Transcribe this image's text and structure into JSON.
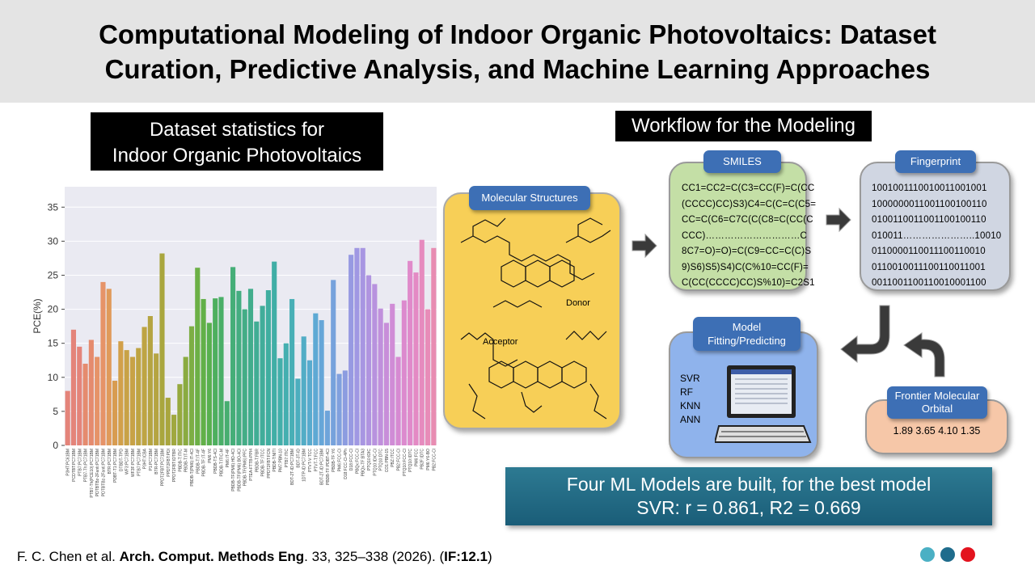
{
  "header": {
    "title_lines": [
      "Computational Modeling of Indoor Organic Photovoltaics: Dataset",
      "Curation, Predictive Analysis, and Machine Learning Approaches"
    ]
  },
  "chart_label": [
    "Dataset statistics for",
    "Indoor Organic Photovoltaics"
  ],
  "chart_data": {
    "type": "bar",
    "ylabel": "PCE(%)",
    "ylim": [
      0,
      38
    ],
    "yticks": [
      0,
      5,
      10,
      15,
      20,
      25,
      30,
      35
    ],
    "grid": true,
    "background": "#eaeaf2",
    "categories": [
      "P3HT:PC61BM",
      "PCDTBT:PC71BM",
      "PTB7:PC71BM",
      "PTB7-Th:PC71BM",
      "PTB7-Th(PCE10):PC71BM",
      "PDTBTBz-2Fanti:PC71BM",
      "PDTBTBz-2Fanti:PC71BM",
      "BTR:PC71BM",
      "PDBT-T1:PC71BM",
      "DTBDT-TPD",
      "WF3:PC71BM",
      "WF3F:PC71BM",
      "PTB7:PC71BM",
      "P3HT:ICBA",
      "P1:PC71BM",
      "BTR-PC71BM",
      "PPDT2FBT:PC71BM",
      "PPDT2FBT:PDI",
      "PPDT2FBT:IDTBR",
      "PBDB-T:ITIC",
      "PBDB-T:IT-M",
      "PBDB-T(PM6):IT-4Cl",
      "PBDB-T:IT-4F",
      "PBDB-TF:IT-4F",
      "PM6:Y6",
      "PBDB-TS-4Cl",
      "PBDB-T:ITIC-M",
      "PM6:IT-4F",
      "PBDB-TF(PM6):HD-4Cl",
      "PBDB-TF(PM6):BO-4Cl",
      "PBDB-TF(PM6):PFC",
      "PTEA-FTTB-PPI4",
      "PBDB-T:FBR",
      "PBDB-TF:ITCC",
      "PPDT2FBT:FCN",
      "PBDB-T:NITI",
      "PM7:PBN-10",
      "PTB7:ITIC",
      "BDT-2T-ID:PC71BM",
      "BDT-3T-ID",
      "1DTP-ID:PC71BM",
      "PTVT-V:TCC",
      "PTVT-T:FCC",
      "BDT-2T-ID:PC71BM",
      "PBDB-TF:PDBT-4Cl",
      "PBDB-TF:Y6",
      "PM6:FCC-Cl",
      "D18:FCC-Cl-4Ph",
      "D18:FCC-Cl",
      "PBQx:FCC-Cl",
      "PBQx-TF:BTA3",
      "PTQ10:IDIC",
      "PTQ10:IDIC-Cl",
      "PTQ10:DTC",
      "CO1:PBN-15",
      "PBZ:ITCC",
      "PB2:FCC-Cl",
      "PTQ10:FCC-Cl",
      "PTQ10:IDTC",
      "PM6:FCC",
      "PB2F:IDTC",
      "PM6:Y6-BO",
      "PB2:FCC-Cl"
    ],
    "values": [
      8,
      17,
      14.5,
      12,
      15.5,
      13,
      24,
      23,
      9.5,
      15.3,
      14,
      13,
      14.3,
      17.4,
      19,
      13.5,
      28.2,
      7,
      4.5,
      9,
      13,
      17.5,
      26.1,
      21.5,
      18,
      21.6,
      21.8,
      6.5,
      26.2,
      22.7,
      20,
      23,
      18.2,
      20.5,
      22.8,
      27,
      12.8,
      15,
      21.5,
      9.8,
      16,
      12.5,
      19.4,
      18.4,
      5.1,
      24.3,
      10.5,
      11,
      28,
      29,
      29,
      25,
      23.7,
      20.1,
      18,
      20.8,
      13,
      21.3,
      27.1,
      25.4,
      30.2,
      20,
      29
    ],
    "colors": [
      "#e4847a",
      "#e4847a",
      "#e4847a",
      "#e58b6e",
      "#e58b6e",
      "#e69368",
      "#e69368",
      "#e09a5a",
      "#d89c50",
      "#d2a04a",
      "#c8a246",
      "#c8a246",
      "#bea443",
      "#bea443",
      "#b5a441",
      "#b5a441",
      "#a9a63e",
      "#a9a63e",
      "#a0a83e",
      "#96a93e",
      "#8aab40",
      "#7dae44",
      "#6cb046",
      "#62b048",
      "#58b04e",
      "#4daf5e",
      "#4aaf68",
      "#47ae70",
      "#45ae78",
      "#44ad80",
      "#43ad86",
      "#42ad8c",
      "#41ad94",
      "#41ad9a",
      "#40aea0",
      "#40aea6",
      "#42afaa",
      "#44afb0",
      "#48afb6",
      "#4caebe",
      "#52adc6",
      "#58abce",
      "#5ea9d4",
      "#66a6d8",
      "#6ea4da",
      "#76a2dc",
      "#80a0de",
      "#8c9ce0",
      "#979ae2",
      "#a098e3",
      "#a896e2",
      "#b094e0",
      "#b892de",
      "#c090dc",
      "#c88ed9",
      "#d08cd6",
      "#d68ad2",
      "#dc8ace",
      "#e08aca",
      "#e48ac4",
      "#e68bbe",
      "#e88cb8",
      "#e88cb2"
    ]
  },
  "workflow": {
    "label": "Workflow for the Modeling",
    "molecular": {
      "tab": "Molecular Structures",
      "donor": "Donor",
      "acceptor": "Acceptor"
    },
    "smiles": {
      "tab": "SMILES",
      "lines": [
        "CC1=CC2=C(C3=CC(F)=C(CC",
        "(CCCC)CC)S3)C4=C(C=C(C5=",
        "CC=C(C6=C7C(C(C8=C(CC(C",
        "CCC)…………………………C",
        "8C7=O)=O)=C(C9=CC=C(C)S",
        "9)S6)S5)S4)C(C%10=CC(F)=",
        "C(CC(CCCC)CC)S%10)=C2S1"
      ]
    },
    "fingerprint": {
      "tab": "Fingerprint",
      "lines": [
        "1001001110010011001001",
        "1000000011001100100110",
        "0100110011001100100110",
        "010011…………………..10010",
        "0110000110011100110010",
        "0110010011100110011001",
        "0011001100110010001100"
      ]
    },
    "model": {
      "tab": [
        "Model",
        "Fitting/Predicting"
      ],
      "items": [
        "SVR",
        "RF",
        "KNN",
        "ANN"
      ]
    },
    "orbital": {
      "tab": [
        "Frontier Molecular",
        "Orbital"
      ],
      "values_text": "1.89 3.65 4.10 1.35"
    }
  },
  "result": [
    "Four ML Models are built, for the best model",
    "SVR: r = 0.861, R2 = 0.669"
  ],
  "citation": [
    {
      "text": "F. C. Chen et al. ",
      "bold": false
    },
    {
      "text": "Arch. Comput. Methods Eng",
      "bold": true
    },
    {
      "text": ". 33, 325–338 (2026). (",
      "bold": false
    },
    {
      "text": "IF:12.1",
      "bold": true
    },
    {
      "text": ")",
      "bold": false
    }
  ]
}
